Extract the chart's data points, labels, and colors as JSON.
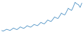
{
  "values": [
    18,
    16,
    19,
    22,
    20,
    18,
    22,
    26,
    23,
    21,
    25,
    30,
    27,
    25,
    29,
    34,
    31,
    29,
    33,
    38,
    36,
    34,
    39,
    45,
    42,
    40,
    46,
    53,
    50,
    48,
    55,
    63,
    60,
    58,
    66,
    76,
    72,
    70,
    80,
    92,
    88,
    85,
    97,
    112,
    107,
    104,
    95,
    110
  ],
  "line_color": "#4a90c4",
  "background_color": "#ffffff",
  "linewidth": 0.6
}
